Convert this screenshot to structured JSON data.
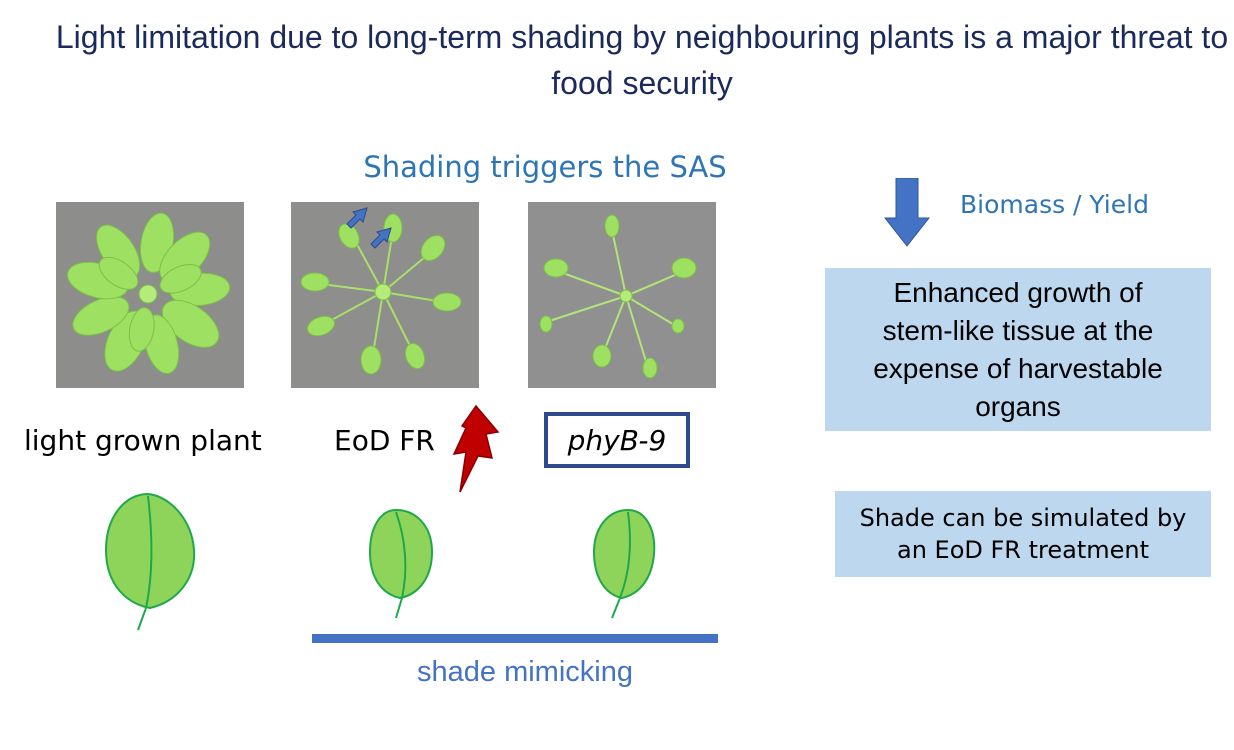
{
  "slide": {
    "title": "Light limitation due to long-term shading by neighbouring plants is a major threat to food security",
    "subtitle": "Shading triggers the SAS",
    "plants": [
      {
        "label": "light grown plant"
      },
      {
        "label": "EoD FR"
      },
      {
        "label": "phyB-9"
      }
    ],
    "shade_mimicking_label": "shade mimicking",
    "biomass_label": "Biomass / Yield",
    "effect_text": "Enhanced growth of stem-like tissue at the expense of harvestable organs",
    "shade_note": "Shade can be simulated by an EoD FR treatment"
  },
  "colors": {
    "title": "#1b2a5a",
    "accent_blue": "#2e75b6",
    "bar_blue": "#4472c4",
    "box_fill": "#bdd7ee",
    "leaf_fill": "#8fd45a",
    "leaf_edge": "#1fa84a",
    "lightning": "#c00000"
  },
  "icons": [
    "down-arrow-icon",
    "lightning-icon",
    "leaf-icon",
    "rosette-photo"
  ]
}
